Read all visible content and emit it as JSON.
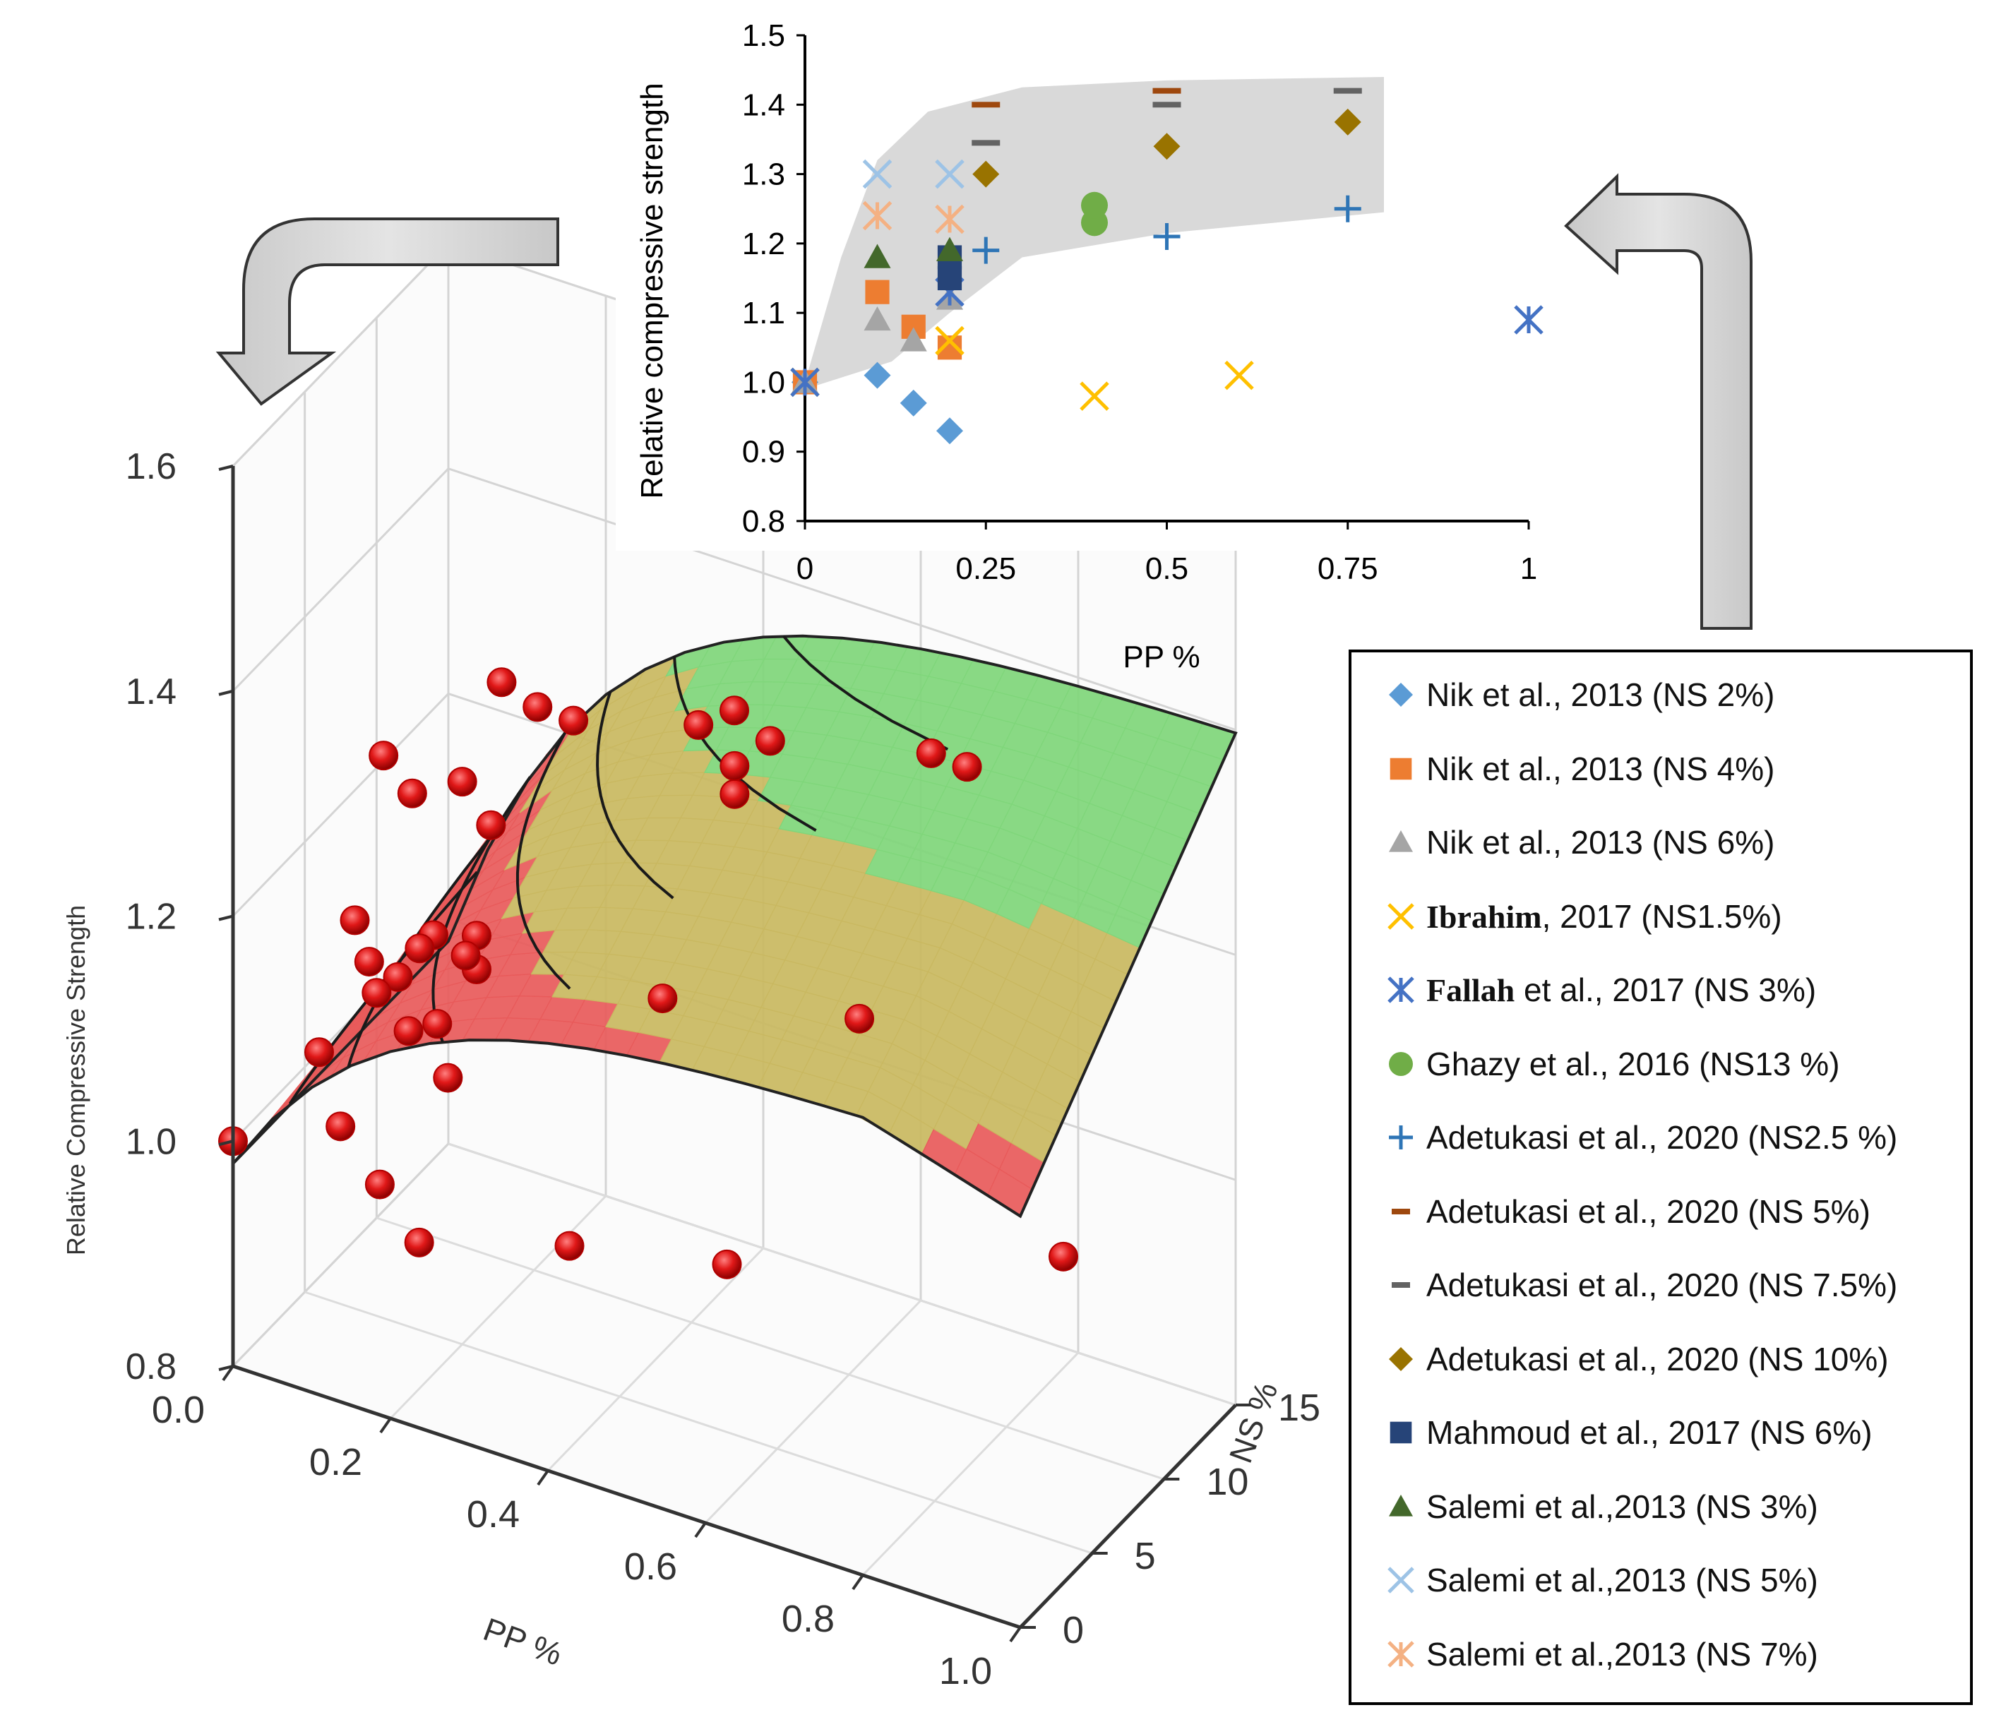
{
  "chart_data": [
    {
      "type": "scatter",
      "title": "",
      "xlabel": "PP %",
      "ylabel": "Relative compressive strength",
      "xlim": [
        0,
        1
      ],
      "ylim": [
        0.8,
        1.5
      ],
      "x_ticks": [
        "0",
        "0.25",
        "0.5",
        "0.75",
        "1"
      ],
      "y_ticks": [
        "0.8",
        "0.9",
        "1.0",
        "1.1",
        "1.2",
        "1.3",
        "1.4",
        "1.5"
      ],
      "series": [
        {
          "name": "Nik et al., 2013 (NS 2%)",
          "marker": "diamond",
          "color": "#5b9bd5",
          "x": [
            0,
            0.1,
            0.15,
            0.2
          ],
          "y": [
            1.0,
            1.01,
            0.97,
            0.93
          ]
        },
        {
          "name": "Nik et al., 2013 (NS 4%)",
          "marker": "square",
          "color": "#ed7d31",
          "x": [
            0,
            0.1,
            0.15,
            0.2
          ],
          "y": [
            1.0,
            1.13,
            1.08,
            1.05
          ]
        },
        {
          "name": "Nik et al., 2013 (NS 6%)",
          "marker": "triangle",
          "color": "#a5a5a5",
          "x": [
            0,
            0.1,
            0.15,
            0.2
          ],
          "y": [
            1.0,
            1.09,
            1.06,
            1.12
          ]
        },
        {
          "name_bold": "Ibrahim",
          "name_rest": ", 2017  (NS1.5%)",
          "name": "Ibrahim , 2017  (NS1.5%)",
          "marker": "x",
          "color": "#ffc000",
          "x": [
            0,
            0.2,
            0.4,
            0.6
          ],
          "y": [
            1.0,
            1.06,
            0.98,
            1.01
          ]
        },
        {
          "name_bold": "Fallah",
          "name_rest": "  et al., 2017 (NS 3%)",
          "name": "Fallah  et al., 2017 (NS 3%)",
          "marker": "asterisk",
          "color": "#4472c4",
          "x": [
            0,
            0.2,
            1.0
          ],
          "y": [
            1.0,
            1.13,
            1.09
          ]
        },
        {
          "name": "Ghazy et al., 2016 (NS13 %)",
          "marker": "circle",
          "color": "#70ad47",
          "x": [
            0.4,
            0.4
          ],
          "y": [
            1.23,
            1.255
          ]
        },
        {
          "name": "Adetukasi et al., 2020 (NS2.5 %)",
          "marker": "plus",
          "color": "#2e75b6",
          "x": [
            0.25,
            0.5,
            0.75
          ],
          "y": [
            1.19,
            1.21,
            1.25
          ]
        },
        {
          "name": "Adetukasi et al., 2020 (NS 5%)",
          "marker": "dash",
          "color": "#9e480e",
          "x": [
            0.25,
            0.5
          ],
          "y": [
            1.4,
            1.42
          ]
        },
        {
          "name": "Adetukasi et al., 2020 (NS 7.5%)",
          "marker": "dash",
          "color": "#636363",
          "x": [
            0.25,
            0.5,
            0.75
          ],
          "y": [
            1.345,
            1.4,
            1.42
          ]
        },
        {
          "name": "Adetukasi et al., 2020 (NS 10%)",
          "marker": "diamond",
          "color": "#997300",
          "x": [
            0.25,
            0.5,
            0.75
          ],
          "y": [
            1.3,
            1.34,
            1.375
          ]
        },
        {
          "name": "Mahmoud et al., 2017 (NS 6%)",
          "marker": "square",
          "color": "#264478",
          "x": [
            0.2,
            0.2
          ],
          "y": [
            1.15,
            1.18
          ]
        },
        {
          "name": "Salemi et al.,2013 (NS 3%)",
          "marker": "triangle",
          "color": "#43682b",
          "x": [
            0.1,
            0.2
          ],
          "y": [
            1.18,
            1.19
          ]
        },
        {
          "name": "Salemi et al.,2013 (NS 5%)",
          "marker": "x",
          "color": "#9dc3e6",
          "x": [
            0.1,
            0.2
          ],
          "y": [
            1.3,
            1.3
          ]
        },
        {
          "name": "Salemi et al.,2013 (NS 7%)",
          "marker": "asterisk",
          "color": "#f4b183",
          "x": [
            0.1,
            0.2
          ],
          "y": [
            1.24,
            1.235
          ]
        }
      ]
    },
    {
      "type": "surface3d",
      "title": "",
      "xlabel": "PP %",
      "ylabel": "NS %",
      "zlabel": "Relative Compressive Strength",
      "x_ticks": [
        "0.0",
        "0.2",
        "0.4",
        "0.6",
        "0.8",
        "1.0"
      ],
      "y_ticks": [
        "0",
        "5",
        "10",
        "15"
      ],
      "z_ticks": [
        "0.8",
        "1.0",
        "1.2",
        "1.4",
        "1.6"
      ],
      "zlim": [
        0.8,
        1.6
      ],
      "colors": {
        "low": "#e74c4c",
        "mid": "#b9b15a",
        "high": "#5fce5f",
        "point": "#e01818"
      },
      "points": [
        {
          "pp": 0.0,
          "ns": 0,
          "rcs": 1.0
        },
        {
          "pp": 0.1,
          "ns": 2,
          "rcs": 1.01
        },
        {
          "pp": 0.15,
          "ns": 2,
          "rcs": 0.97
        },
        {
          "pp": 0.2,
          "ns": 2,
          "rcs": 0.93
        },
        {
          "pp": 0.4,
          "ns": 1.5,
          "rcs": 0.98
        },
        {
          "pp": 0.6,
          "ns": 1.5,
          "rcs": 1.01
        },
        {
          "pp": 1.0,
          "ns": 3,
          "rcs": 1.09
        },
        {
          "pp": 0.1,
          "ns": 4,
          "rcs": 1.13
        },
        {
          "pp": 0.15,
          "ns": 4,
          "rcs": 1.08
        },
        {
          "pp": 0.2,
          "ns": 4,
          "rcs": 1.05
        },
        {
          "pp": 0.1,
          "ns": 6,
          "rcs": 1.09
        },
        {
          "pp": 0.15,
          "ns": 6,
          "rcs": 1.06
        },
        {
          "pp": 0.2,
          "ns": 6,
          "rcs": 1.12
        },
        {
          "pp": 0.2,
          "ns": 6,
          "rcs": 1.15
        },
        {
          "pp": 0.1,
          "ns": 3,
          "rcs": 1.18
        },
        {
          "pp": 0.2,
          "ns": 3,
          "rcs": 1.19
        },
        {
          "pp": 0.1,
          "ns": 5,
          "rcs": 1.3
        },
        {
          "pp": 0.2,
          "ns": 5,
          "rcs": 1.3
        },
        {
          "pp": 0.1,
          "ns": 7,
          "rcs": 1.24
        },
        {
          "pp": 0.2,
          "ns": 7,
          "rcs": 1.235
        },
        {
          "pp": 0.25,
          "ns": 2.5,
          "rcs": 1.19
        },
        {
          "pp": 0.5,
          "ns": 2.5,
          "rcs": 1.21
        },
        {
          "pp": 0.75,
          "ns": 2.5,
          "rcs": 1.25
        },
        {
          "pp": 0.25,
          "ns": 5,
          "rcs": 1.4
        },
        {
          "pp": 0.5,
          "ns": 5,
          "rcs": 1.42
        },
        {
          "pp": 0.25,
          "ns": 7.5,
          "rcs": 1.345
        },
        {
          "pp": 0.5,
          "ns": 7.5,
          "rcs": 1.4
        },
        {
          "pp": 0.75,
          "ns": 7.5,
          "rcs": 1.42
        },
        {
          "pp": 0.25,
          "ns": 10,
          "rcs": 1.3
        },
        {
          "pp": 0.5,
          "ns": 10,
          "rcs": 1.34
        },
        {
          "pp": 0.75,
          "ns": 10,
          "rcs": 1.375
        },
        {
          "pp": 0.4,
          "ns": 13,
          "rcs": 1.23
        },
        {
          "pp": 0.4,
          "ns": 13,
          "rcs": 1.255
        },
        {
          "pp": 0.0,
          "ns": 13,
          "rcs": 1.0
        },
        {
          "pp": 0.0,
          "ns": 10,
          "rcs": 1.0
        },
        {
          "pp": 0.0,
          "ns": 6,
          "rcs": 1.0
        }
      ]
    }
  ]
}
